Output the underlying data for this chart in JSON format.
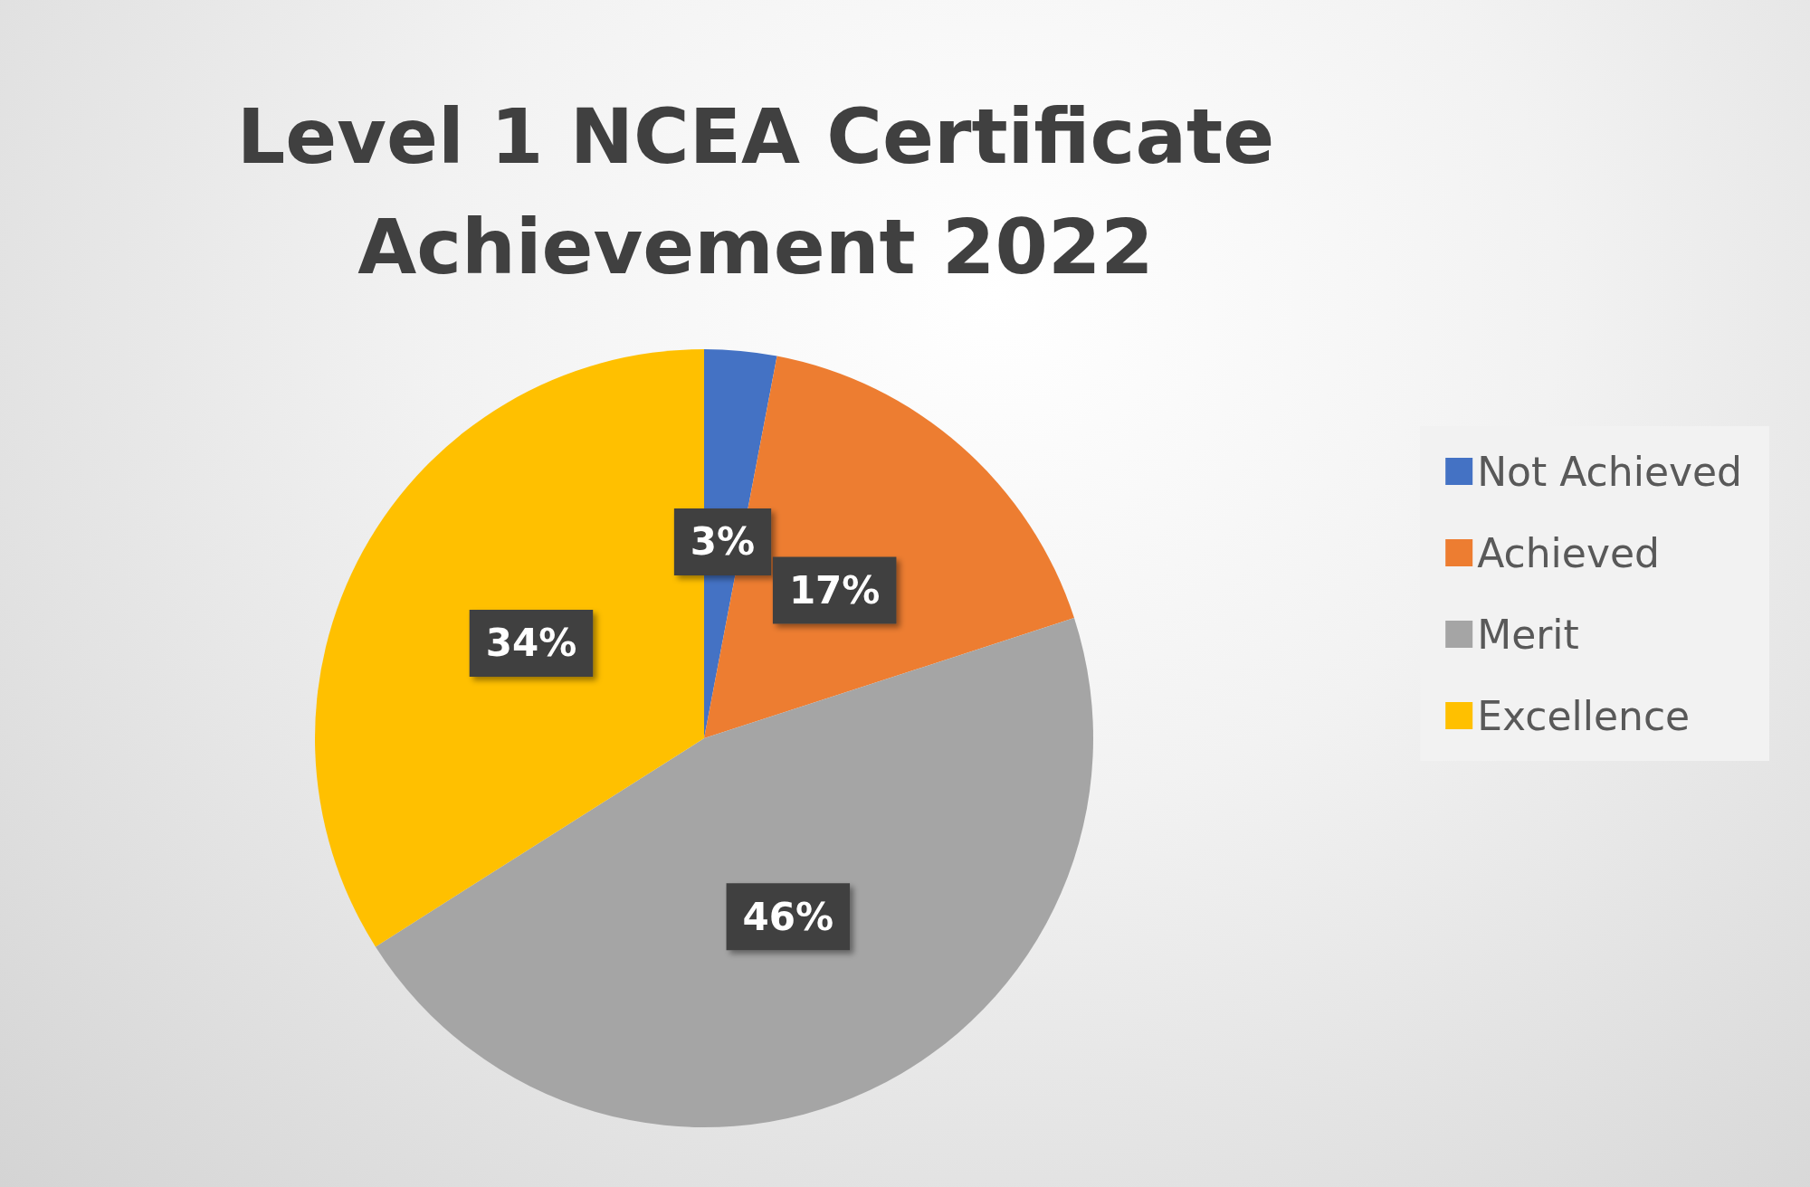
{
  "chart_data": {
    "type": "pie",
    "title": "Level 1 NCEA Certificate\nAchievement 2022",
    "categories": [
      "Not Achieved",
      "Achieved",
      "Merit",
      "Excellence"
    ],
    "values": [
      3,
      17,
      46,
      34
    ],
    "value_labels": [
      "3%",
      "17%",
      "46%",
      "34%"
    ],
    "colors": [
      "#4472c4",
      "#ed7d31",
      "#a5a5a5",
      "#ffc000"
    ],
    "legend": "right"
  }
}
